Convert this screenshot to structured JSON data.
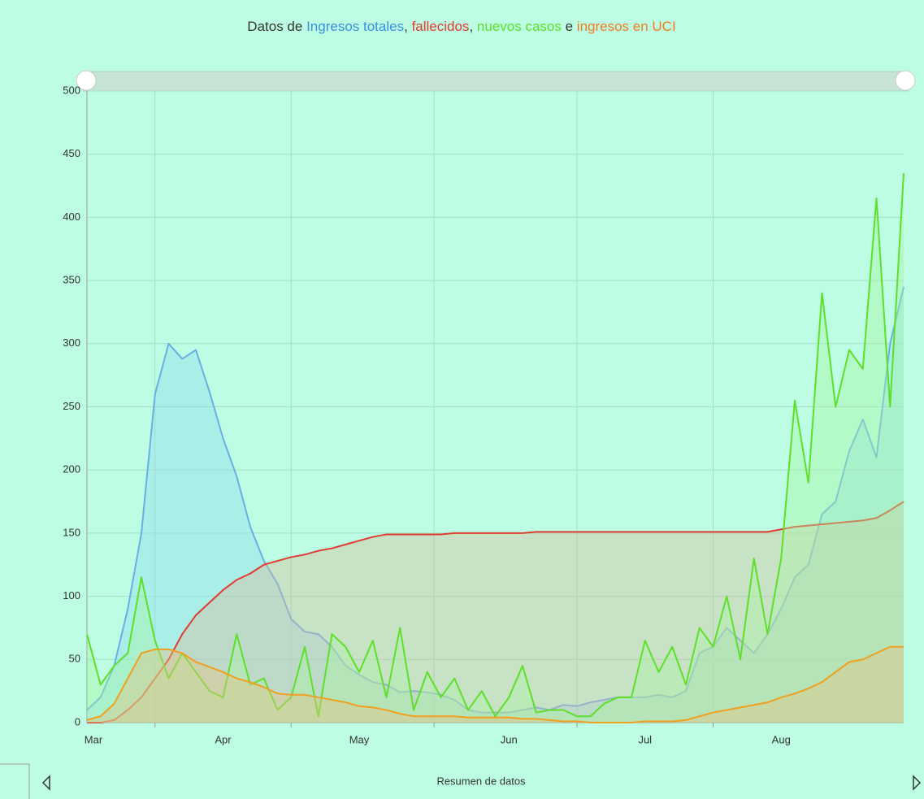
{
  "chart_data": {
    "type": "area",
    "title_parts": [
      "Datos de",
      ",",
      ",",
      "e"
    ],
    "footer": "Resumen de datos",
    "categories": [
      "Mar",
      null,
      null,
      null,
      null,
      null,
      null,
      null,
      null,
      null,
      "Apr",
      null,
      null,
      null,
      null,
      null,
      null,
      null,
      null,
      null,
      "May",
      null,
      null,
      null,
      null,
      null,
      null,
      null,
      null,
      null,
      null,
      "Jun",
      null,
      null,
      null,
      null,
      null,
      null,
      null,
      null,
      null,
      "Jul",
      null,
      null,
      null,
      null,
      null,
      null,
      null,
      null,
      null,
      "Aug",
      null,
      null,
      null,
      null,
      null,
      null,
      null,
      null,
      null
    ],
    "ylim": [
      0,
      500
    ],
    "yticks": [
      0,
      50,
      100,
      150,
      200,
      250,
      300,
      350,
      400,
      450,
      500
    ],
    "grid": true,
    "series": [
      {
        "name": "Ingresos totales",
        "color": "#6aaee6",
        "fill": "#8fd9ee",
        "values": [
          10,
          20,
          45,
          90,
          150,
          260,
          300,
          288,
          295,
          262,
          225,
          195,
          155,
          128,
          110,
          82,
          72,
          70,
          60,
          45,
          38,
          32,
          30,
          24,
          25,
          24,
          22,
          18,
          10,
          8,
          8,
          8,
          10,
          12,
          10,
          14,
          13,
          16,
          18,
          20,
          20,
          20,
          22,
          20,
          25,
          55,
          60,
          75,
          65,
          55,
          70,
          90,
          115,
          125,
          165,
          175,
          215,
          240,
          210,
          300,
          345
        ]
      },
      {
        "name": "fallecidos",
        "color": "#e03c31",
        "fill": "#d9b89a",
        "values": [
          0,
          0,
          2,
          10,
          20,
          35,
          50,
          70,
          85,
          95,
          105,
          113,
          118,
          125,
          128,
          131,
          133,
          136,
          138,
          141,
          144,
          147,
          149,
          149,
          149,
          149,
          149,
          150,
          150,
          150,
          150,
          150,
          150,
          151,
          151,
          151,
          151,
          151,
          151,
          151,
          151,
          151,
          151,
          151,
          151,
          151,
          151,
          151,
          151,
          151,
          151,
          153,
          155,
          156,
          157,
          158,
          159,
          160,
          162,
          168,
          175
        ]
      },
      {
        "name": "nuevos casos",
        "color": "#5ee02a",
        "fill": "#a8f5a0",
        "values": [
          70,
          30,
          45,
          55,
          115,
          65,
          35,
          55,
          40,
          25,
          20,
          70,
          30,
          35,
          10,
          20,
          60,
          5,
          70,
          60,
          40,
          65,
          20,
          75,
          10,
          40,
          20,
          35,
          10,
          25,
          5,
          20,
          45,
          8,
          10,
          10,
          5,
          5,
          15,
          20,
          20,
          65,
          40,
          60,
          30,
          75,
          60,
          100,
          50,
          130,
          70,
          130,
          255,
          190,
          340,
          250,
          295,
          280,
          415,
          250,
          435
        ]
      },
      {
        "name": "ingresos en UCI",
        "color": "#f0a020",
        "fill": "#e8c080",
        "values": [
          2,
          5,
          15,
          35,
          55,
          58,
          58,
          55,
          48,
          44,
          40,
          35,
          32,
          28,
          23,
          22,
          22,
          20,
          18,
          16,
          13,
          12,
          10,
          7,
          5,
          5,
          5,
          5,
          4,
          4,
          4,
          4,
          3,
          3,
          2,
          1,
          1,
          0,
          0,
          0,
          0,
          1,
          1,
          1,
          2,
          5,
          8,
          10,
          12,
          14,
          16,
          20,
          23,
          27,
          32,
          40,
          48,
          50,
          55,
          60,
          60
        ]
      }
    ]
  }
}
